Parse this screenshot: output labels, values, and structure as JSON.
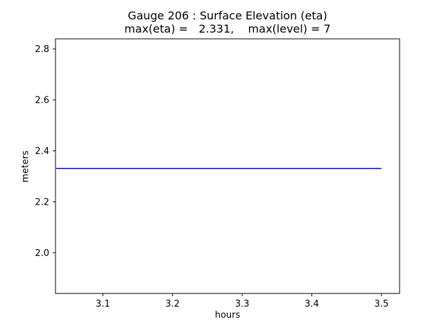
{
  "chart_data": {
    "type": "line",
    "title": "Gauge 206 : Surface Elevation (eta)",
    "subtitle": "max(eta) =   2.331,    max(level) = 7",
    "xlabel": "hours",
    "ylabel": "meters",
    "xlim": [
      3.032,
      3.526
    ],
    "ylim": [
      1.84,
      2.84
    ],
    "xticks": [
      3.1,
      3.2,
      3.3,
      3.4,
      3.5
    ],
    "xtick_labels": [
      "3.1",
      "3.2",
      "3.3",
      "3.4",
      "3.5"
    ],
    "yticks": [
      2.0,
      2.2,
      2.4,
      2.6,
      2.8
    ],
    "ytick_labels": [
      "2.0",
      "2.2",
      "2.4",
      "2.6",
      "2.8"
    ],
    "grid": false,
    "legend": "none",
    "series": [
      {
        "name": "surface-elevation-eta",
        "color": "#0000ff",
        "x": [
          3.033,
          3.5
        ],
        "y": [
          2.331,
          2.331
        ]
      }
    ],
    "axis_color": "#000000",
    "background_color": "#ffffff"
  }
}
